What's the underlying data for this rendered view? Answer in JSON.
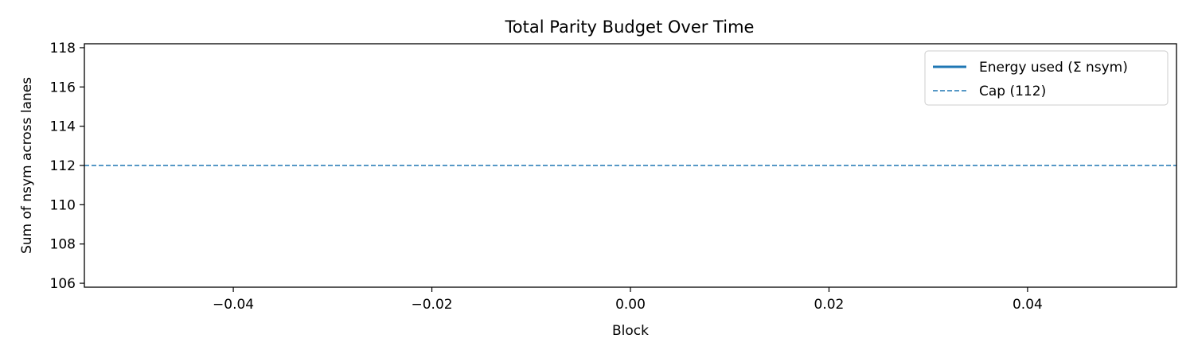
{
  "chart_data": {
    "type": "line",
    "title": "Total Parity Budget Over Time",
    "xlabel": "Block",
    "ylabel": "Sum of nsym across lanes",
    "xlim": [
      -0.055,
      0.055
    ],
    "ylim": [
      105.8,
      118.2
    ],
    "xticks": [
      -0.04,
      -0.02,
      0.0,
      0.02,
      0.04
    ],
    "xtick_labels": [
      "−0.04",
      "−0.02",
      "0.00",
      "0.02",
      "0.04"
    ],
    "yticks": [
      106,
      108,
      110,
      112,
      114,
      116,
      118
    ],
    "ytick_labels": [
      "106",
      "108",
      "110",
      "112",
      "114",
      "116",
      "118"
    ],
    "grid": false,
    "legend_position": "top-right",
    "series": [
      {
        "name": "Energy used (Σ nsym)",
        "style": "solid",
        "color": "#1f77b4",
        "x": [],
        "y": []
      }
    ],
    "hlines": [
      {
        "name": "Cap (112)",
        "y": 112,
        "style": "dashed",
        "color": "#1f77b4"
      }
    ]
  }
}
